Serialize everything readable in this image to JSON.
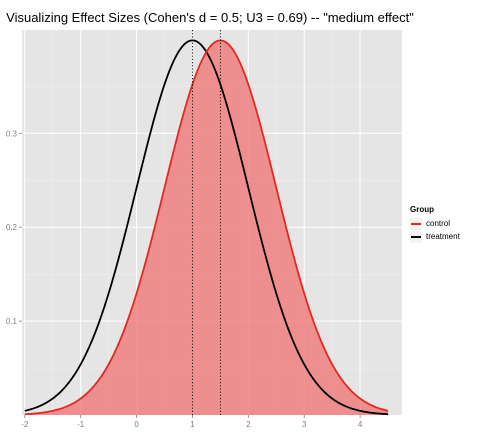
{
  "chart_data": {
    "type": "line",
    "title": "Visualizing Effect Sizes (Cohen's d = 0.5; U3 = 0.69) -- \"medium effect\"",
    "xlabel": "",
    "ylabel": "",
    "xlim": [
      -2.05,
      4.75
    ],
    "ylim": [
      0,
      0.41
    ],
    "x_ticks": [
      -2,
      -1,
      0,
      1,
      2,
      3,
      4
    ],
    "y_ticks": [
      0.1,
      0.2,
      0.3
    ],
    "grid": true,
    "legend": {
      "title": "Group",
      "position": "right"
    },
    "series": [
      {
        "name": "control",
        "color": "#e8271e",
        "mean": 1.5,
        "sd": 1,
        "x_range": [
          -2,
          4.5
        ],
        "shaded_below": 1.5,
        "fill": "#f08080"
      },
      {
        "name": "treatment",
        "color": "#000000",
        "mean": 1.0,
        "sd": 1,
        "x_range": [
          -2,
          4.5
        ]
      }
    ],
    "reference_lines": [
      {
        "x": 1.0,
        "style": "dotted"
      },
      {
        "x": 1.5,
        "style": "dotted"
      }
    ]
  }
}
